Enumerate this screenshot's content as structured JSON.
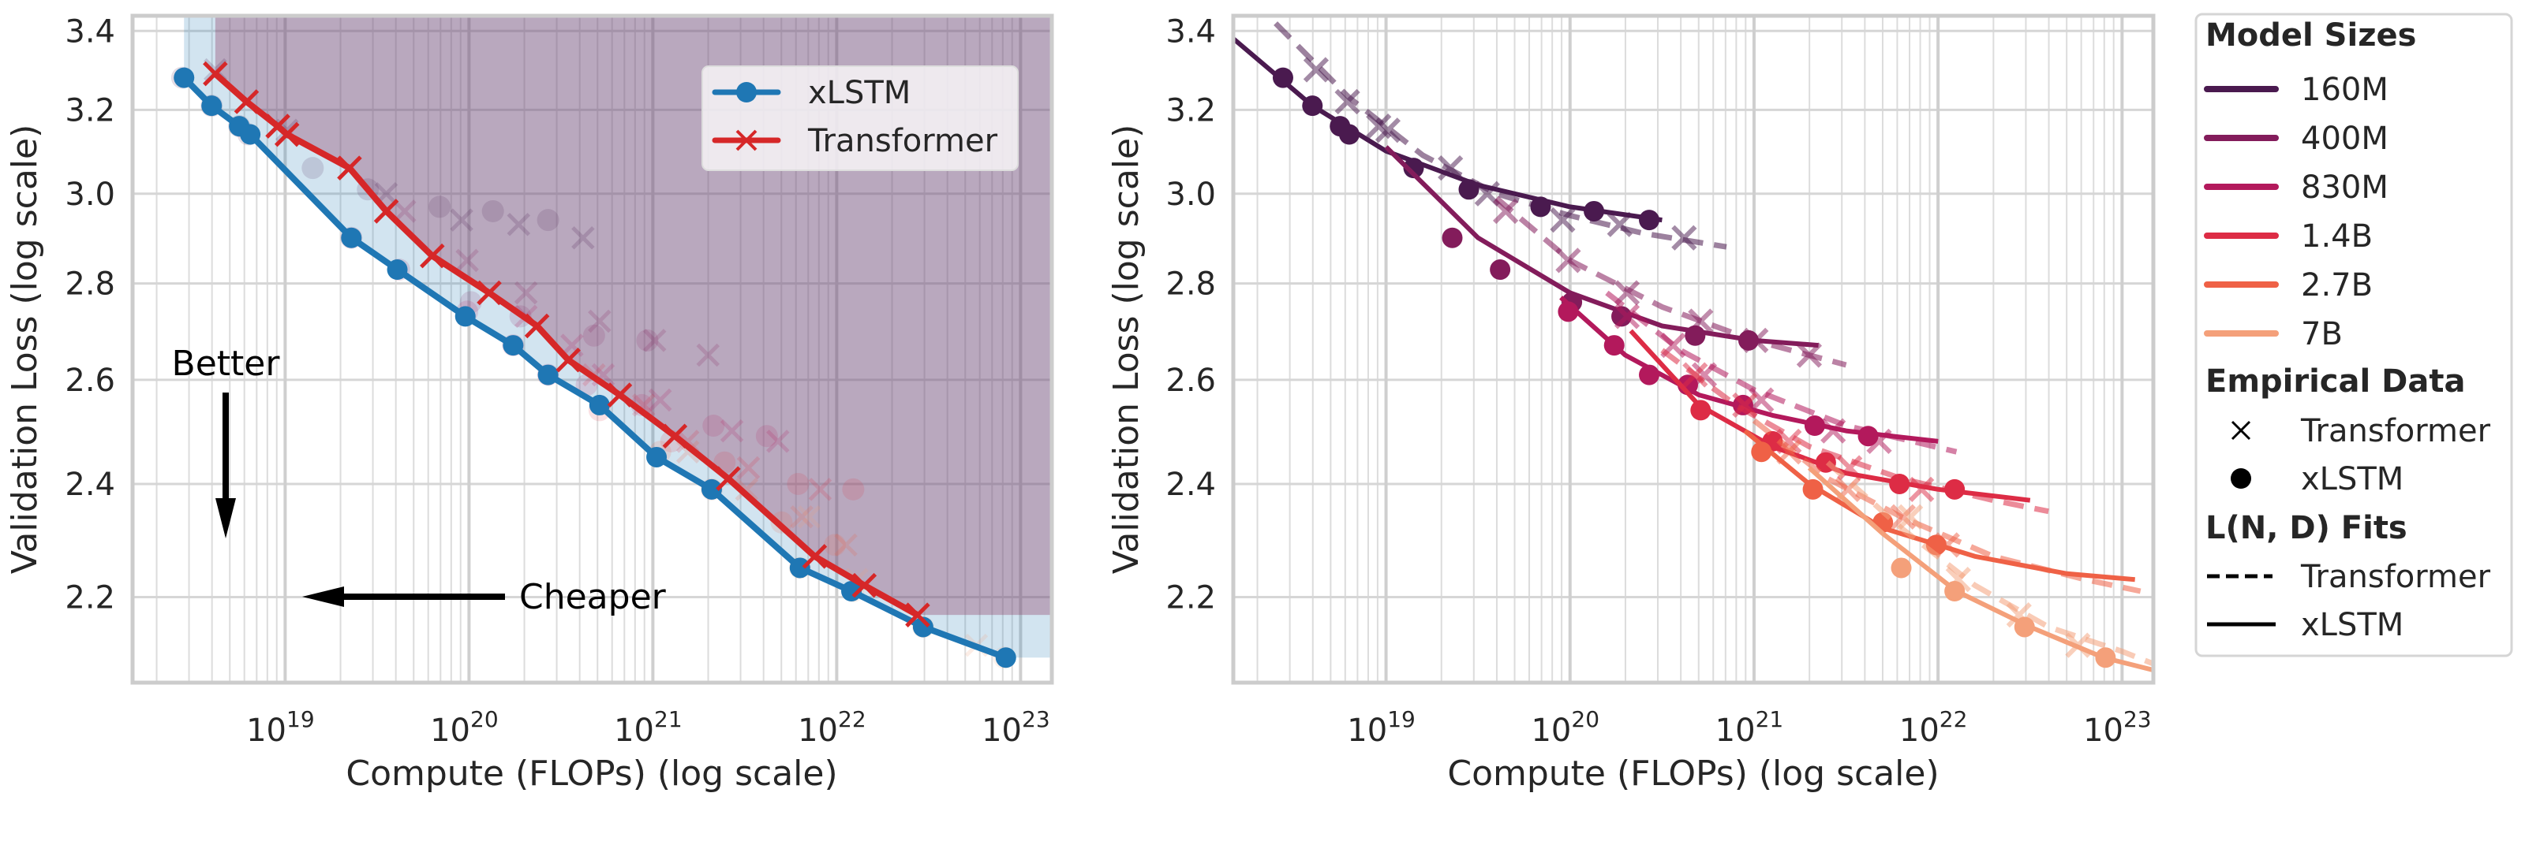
{
  "chart_data": [
    {
      "type": "line",
      "panel": "left",
      "title": "",
      "xlabel": "Compute (FLOPs) (log scale)",
      "ylabel": "Validation Loss (log scale)",
      "xscale": "log",
      "yscale": "log",
      "xlim_log10": [
        18.17,
        23.17
      ],
      "ylim": [
        2.06,
        3.44
      ],
      "xticks": [
        {
          "base": "10",
          "exp": "19",
          "log10": 19
        },
        {
          "base": "10",
          "exp": "20",
          "log10": 20
        },
        {
          "base": "10",
          "exp": "21",
          "log10": 21
        },
        {
          "base": "10",
          "exp": "22",
          "log10": 22
        },
        {
          "base": "10",
          "exp": "23",
          "log10": 23
        }
      ],
      "yticks": [
        {
          "label": "2.2",
          "value": 2.2
        },
        {
          "label": "2.4",
          "value": 2.4
        },
        {
          "label": "2.6",
          "value": 2.6
        },
        {
          "label": "2.8",
          "value": 2.8
        },
        {
          "label": "3.0",
          "value": 3.0
        },
        {
          "label": "3.2",
          "value": 3.2
        },
        {
          "label": "3.4",
          "value": 3.4
        }
      ],
      "grid": true,
      "legend": {
        "placement": "top-right",
        "entries": [
          {
            "label": "xLSTM",
            "marker": "circle",
            "color": "#1f77b4"
          },
          {
            "label": "Transformer",
            "marker": "x",
            "color": "#d62728"
          }
        ]
      },
      "annotations": [
        {
          "text": "Better",
          "arrow": "down"
        },
        {
          "text": "Cheaper",
          "arrow": "left"
        }
      ],
      "series": [
        {
          "name": "xLSTM",
          "color": "#1f77b4",
          "marker": "circle",
          "fill_color": "#1f77b4",
          "log10_x": [
            18.45,
            18.6,
            18.75,
            18.81,
            19.36,
            19.61,
            19.98,
            20.24,
            20.43,
            20.71,
            21.02,
            21.32,
            21.8,
            22.08,
            22.47,
            22.92
          ],
          "y": [
            3.28,
            3.21,
            3.16,
            3.14,
            2.9,
            2.83,
            2.73,
            2.67,
            2.61,
            2.55,
            2.45,
            2.39,
            2.25,
            2.21,
            2.15,
            2.1
          ]
        },
        {
          "name": "Transformer",
          "color": "#d62728",
          "marker": "x",
          "fill_color": "#8c3a62",
          "log10_x": [
            18.62,
            18.79,
            18.96,
            19.01,
            19.35,
            19.55,
            19.8,
            20.11,
            20.37,
            20.54,
            20.82,
            21.12,
            21.41,
            21.88,
            22.15,
            22.44
          ],
          "y": [
            3.29,
            3.22,
            3.16,
            3.14,
            3.06,
            2.96,
            2.86,
            2.78,
            2.71,
            2.64,
            2.57,
            2.49,
            2.41,
            2.27,
            2.22,
            2.17
          ]
        }
      ]
    },
    {
      "type": "scatter",
      "panel": "right",
      "title": "",
      "xlabel": "Compute (FLOPs) (log scale)",
      "ylabel": "Validation Loss (log scale)",
      "xscale": "log",
      "yscale": "log",
      "xlim_log10": [
        18.17,
        23.17
      ],
      "ylim": [
        2.06,
        3.44
      ],
      "xticks": [
        {
          "base": "10",
          "exp": "19",
          "log10": 19
        },
        {
          "base": "10",
          "exp": "20",
          "log10": 20
        },
        {
          "base": "10",
          "exp": "21",
          "log10": 21
        },
        {
          "base": "10",
          "exp": "22",
          "log10": 22
        },
        {
          "base": "10",
          "exp": "23",
          "log10": 23
        }
      ],
      "yticks": [
        {
          "label": "2.2",
          "value": 2.2
        },
        {
          "label": "2.4",
          "value": 2.4
        },
        {
          "label": "2.6",
          "value": 2.6
        },
        {
          "label": "2.8",
          "value": 2.8
        },
        {
          "label": "3.0",
          "value": 3.0
        },
        {
          "label": "3.2",
          "value": 3.2
        },
        {
          "label": "3.4",
          "value": 3.4
        }
      ],
      "grid": true,
      "legend": {
        "placement": "outside-right",
        "sections": [
          {
            "title": "Model Sizes",
            "entries": [
              {
                "label": "160M",
                "style": "line",
                "color": "#4a1a4f"
              },
              {
                "label": "400M",
                "style": "line",
                "color": "#831c5b"
              },
              {
                "label": "830M",
                "style": "line",
                "color": "#b3195c"
              },
              {
                "label": "1.4B",
                "style": "line",
                "color": "#dd2c45"
              },
              {
                "label": "2.7B",
                "style": "line",
                "color": "#ef6146"
              },
              {
                "label": "7B",
                "style": "line",
                "color": "#f4a07a"
              }
            ]
          },
          {
            "title": "Empirical Data",
            "entries": [
              {
                "label": "Transformer",
                "style": "x-marker",
                "color": "#000000"
              },
              {
                "label": "xLSTM",
                "style": "dot-marker",
                "color": "#000000"
              }
            ]
          },
          {
            "title": "L(N, D) Fits",
            "entries": [
              {
                "label": "Transformer",
                "style": "dashed",
                "color": "#000000"
              },
              {
                "label": "xLSTM",
                "style": "solid",
                "color": "#000000"
              }
            ]
          }
        ]
      },
      "series": [
        {
          "name": "160M",
          "color": "#4a1a4f",
          "xlstm_points": {
            "log10_x": [
              18.44,
              18.6,
              18.75,
              18.8,
              19.15,
              19.45,
              19.84,
              20.13,
              20.43
            ],
            "y": [
              3.28,
              3.21,
              3.16,
              3.14,
              3.06,
              3.01,
              2.97,
              2.96,
              2.94
            ]
          },
          "transformer_points": {
            "log10_x": [
              18.62,
              18.79,
              18.96,
              19.01,
              19.35,
              19.55,
              19.96,
              20.27,
              20.62
            ],
            "y": [
              3.3,
              3.22,
              3.16,
              3.15,
              3.06,
              3.0,
              2.94,
              2.93,
              2.9
            ]
          },
          "xlstm_fit": {
            "log10_x": [
              18.17,
              18.6,
              19.0,
              19.5,
              20.0,
              20.5
            ],
            "y": [
              3.38,
              3.21,
              3.1,
              3.02,
              2.97,
              2.94
            ]
          },
          "transformer_fit": {
            "log10_x": [
              18.4,
              18.8,
              19.2,
              19.6,
              20.0,
              20.4,
              20.85
            ],
            "y": [
              3.42,
              3.23,
              3.09,
              3.0,
              2.95,
              2.91,
              2.88
            ]
          }
        },
        {
          "name": "400M",
          "color": "#831c5b",
          "xlstm_points": {
            "log10_x": [
              19.36,
              19.62,
              20.01,
              20.28,
              20.68,
              20.97
            ],
            "y": [
              2.9,
              2.83,
              2.76,
              2.73,
              2.69,
              2.68
            ]
          },
          "transformer_points": {
            "log10_x": [
              19.65,
              19.99,
              20.31,
              20.71,
              21.01,
              21.3
            ],
            "y": [
              2.96,
              2.85,
              2.78,
              2.72,
              2.68,
              2.65
            ]
          },
          "xlstm_fit": {
            "log10_x": [
              19.0,
              19.5,
              20.0,
              20.5,
              21.0,
              21.35
            ],
            "y": [
              3.11,
              2.9,
              2.78,
              2.71,
              2.68,
              2.67
            ]
          },
          "transformer_fit": {
            "log10_x": [
              19.6,
              20.0,
              20.5,
              21.0,
              21.5
            ],
            "y": [
              2.99,
              2.85,
              2.75,
              2.68,
              2.63
            ]
          }
        },
        {
          "name": "830M",
          "color": "#b3195c",
          "xlstm_points": {
            "log10_x": [
              19.99,
              20.24,
              20.43,
              20.64,
              20.94,
              21.33,
              21.62
            ],
            "y": [
              2.74,
              2.67,
              2.61,
              2.59,
              2.55,
              2.51,
              2.49
            ]
          },
          "transformer_points": {
            "log10_x": [
              20.31,
              20.56,
              20.73,
              21.04,
              21.43,
              21.68
            ],
            "y": [
              2.73,
              2.67,
              2.61,
              2.56,
              2.5,
              2.48
            ]
          },
          "xlstm_fit": {
            "log10_x": [
              19.95,
              20.3,
              20.7,
              21.1,
              21.5,
              22.0
            ],
            "y": [
              2.77,
              2.65,
              2.57,
              2.53,
              2.5,
              2.48
            ]
          },
          "transformer_fit": {
            "log10_x": [
              20.2,
              20.6,
              21.0,
              21.5,
              22.1
            ],
            "y": [
              2.78,
              2.66,
              2.58,
              2.51,
              2.46
            ]
          }
        },
        {
          "name": "1.4B",
          "color": "#dd2c45",
          "xlstm_points": {
            "log10_x": [
              20.71,
              21.1,
              21.39,
              21.79,
              22.09
            ],
            "y": [
              2.54,
              2.48,
              2.44,
              2.4,
              2.39
            ]
          },
          "transformer_points": {
            "log10_x": [
              20.68,
              20.95,
              21.19,
              21.52,
              21.91
            ],
            "y": [
              2.61,
              2.55,
              2.48,
              2.43,
              2.39
            ]
          },
          "xlstm_fit": {
            "log10_x": [
              20.33,
              20.7,
              21.1,
              21.5,
              22.0,
              22.5
            ],
            "y": [
              2.7,
              2.55,
              2.47,
              2.42,
              2.39,
              2.37
            ]
          },
          "transformer_fit": {
            "log10_x": [
              20.5,
              20.9,
              21.3,
              21.8,
              22.3,
              22.6
            ],
            "y": [
              2.66,
              2.55,
              2.47,
              2.41,
              2.37,
              2.35
            ]
          }
        },
        {
          "name": "2.7B",
          "color": "#ef6146",
          "xlstm_points": {
            "log10_x": [
              21.04,
              21.32,
              21.7,
              21.99
            ],
            "y": [
              2.46,
              2.39,
              2.33,
              2.29
            ]
          },
          "transformer_points": {
            "log10_x": [
              21.19,
              21.51,
              21.81,
              22.05
            ],
            "y": [
              2.46,
              2.39,
              2.34,
              2.29
            ]
          },
          "xlstm_fit": {
            "log10_x": [
              20.95,
              21.3,
              21.7,
              22.2,
              22.7,
              23.07
            ],
            "y": [
              2.5,
              2.4,
              2.32,
              2.27,
              2.24,
              2.23
            ]
          },
          "transformer_fit": {
            "log10_x": [
              21.0,
              21.4,
              21.8,
              22.3,
              22.8,
              23.1
            ],
            "y": [
              2.52,
              2.41,
              2.34,
              2.27,
              2.23,
              2.21
            ]
          }
        },
        {
          "name": "7B",
          "color": "#f4a07a",
          "xlstm_points": {
            "log10_x": [
              21.8,
              22.09,
              22.47,
              22.91
            ],
            "y": [
              2.25,
              2.21,
              2.15,
              2.1
            ]
          },
          "transformer_points": {
            "log10_x": [
              21.85,
              22.11,
              22.44,
              22.76
            ],
            "y": [
              2.34,
              2.23,
              2.17,
              2.12
            ]
          },
          "xlstm_fit": {
            "log10_x": [
              21.3,
              21.7,
              22.1,
              22.5,
              22.9,
              23.17
            ],
            "y": [
              2.43,
              2.31,
              2.21,
              2.15,
              2.1,
              2.08
            ]
          },
          "transformer_fit": {
            "log10_x": [
              21.4,
              21.8,
              22.2,
              22.6,
              23.0,
              23.17
            ],
            "y": [
              2.44,
              2.32,
              2.22,
              2.15,
              2.11,
              2.09
            ]
          }
        }
      ]
    }
  ]
}
